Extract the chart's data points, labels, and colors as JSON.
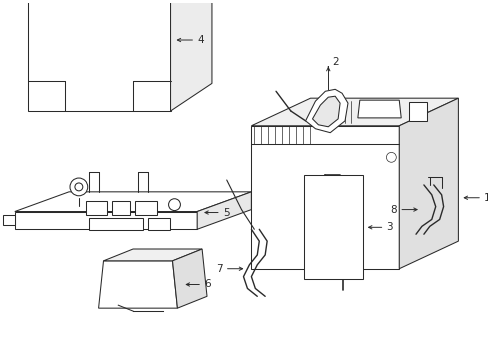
{
  "bg_color": "#ffffff",
  "line_color": "#2a2a2a",
  "lw": 0.75,
  "fig_w": 4.89,
  "fig_h": 3.6,
  "dpi": 100
}
